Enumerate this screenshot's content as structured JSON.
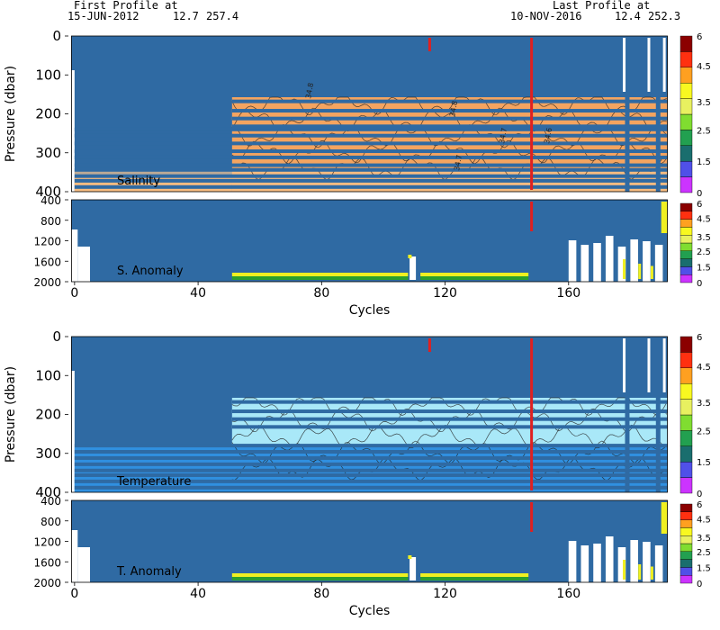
{
  "header": {
    "first_profile_label": "First Profile at",
    "first_profile_date": "15-JUN-2012",
    "first_profile_lat": "12.7",
    "first_profile_lon": "257.4",
    "last_profile_label": "Last Profile at",
    "last_profile_date": "10-NOV-2016",
    "last_profile_lat": "12.4",
    "last_profile_lon": "252.3"
  },
  "colors": {
    "background_blue": "#2f6aa3",
    "salinity_orange": "#f4a460",
    "salinity_light": "#f8c690",
    "temp_cyan": "#a9e8f8",
    "temp_mid": "#4fc8ef",
    "temp_deep": "#3090e0",
    "qc_red": "#e02020",
    "anomaly_yellow": "#f0f020",
    "anomaly_green": "#2ca02c"
  },
  "chart_data": [
    {
      "type": "heatmap",
      "panel": "salinity",
      "label": "Salinity",
      "ylabel": "Pressure (dbar)",
      "x_range": [
        -2,
        193
      ],
      "ylim": [
        400,
        0
      ],
      "y_ticks": [
        "0",
        "100",
        "200",
        "300",
        "400"
      ],
      "contour_labels": [
        "34.8",
        "34.7",
        "34.7",
        "34.6",
        "34.8"
      ],
      "colorbar_ticks": [
        "6",
        "4.5",
        "3.5",
        "2.5",
        "1.5",
        "0"
      ]
    },
    {
      "type": "heatmap",
      "panel": "salinity_anomaly",
      "label": "S. Anomaly",
      "x_range": [
        -2,
        193
      ],
      "ylim": [
        2000,
        400
      ],
      "y_ticks": [
        "400",
        "800",
        "1200",
        "1600",
        "2000"
      ],
      "x_ticks": [
        "0",
        "40",
        "80",
        "120",
        "160"
      ],
      "xlabel": "Cycles",
      "colorbar_ticks": [
        "6",
        "4.5",
        "3.5",
        "2.5",
        "1.5",
        "0"
      ]
    },
    {
      "type": "heatmap",
      "panel": "temperature",
      "label": "Temperature",
      "ylabel": "Pressure (dbar)",
      "x_range": [
        -2,
        193
      ],
      "ylim": [
        400,
        0
      ],
      "y_ticks": [
        "0",
        "100",
        "200",
        "300",
        "400"
      ],
      "colorbar_ticks": [
        "6",
        "4.5",
        "3.5",
        "2.5",
        "1.5",
        "0"
      ]
    },
    {
      "type": "heatmap",
      "panel": "temperature_anomaly",
      "label": "T. Anomaly",
      "x_range": [
        -2,
        193
      ],
      "ylim": [
        2000,
        400
      ],
      "y_ticks": [
        "400",
        "800",
        "1200",
        "1600",
        "2000"
      ],
      "x_ticks": [
        "0",
        "40",
        "80",
        "120",
        "160"
      ],
      "xlabel": "Cycles",
      "colorbar_ticks": [
        "6",
        "4.5",
        "3.5",
        "2.5",
        "1.5",
        "0"
      ]
    }
  ],
  "colorbar_colors": [
    "#cc33ff",
    "#5050e8",
    "#1a6e6e",
    "#22a050",
    "#80dd30",
    "#e8f060",
    "#f8f820",
    "#ffa020",
    "#ff3010",
    "#8b0000"
  ]
}
